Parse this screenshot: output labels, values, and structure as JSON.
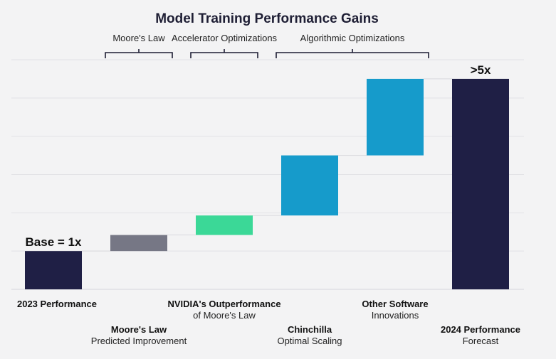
{
  "chart_data": {
    "type": "bar",
    "subtype": "waterfall",
    "title": "Model Training Performance Gains",
    "xlabel": "",
    "ylabel": "",
    "ylim": [
      0,
      6
    ],
    "grid": true,
    "categories": [
      {
        "bold": "2023 Performance",
        "normal": ""
      },
      {
        "bold": "Moore's Law",
        "normal": "Predicted Improvement"
      },
      {
        "bold": "NVIDIA's Outperformance",
        "normal": "of Moore's Law"
      },
      {
        "bold": "Chinchilla",
        "normal": "Optimal Scaling"
      },
      {
        "bold": "Other Software",
        "normal": "Innovations"
      },
      {
        "bold": "2024 Performance",
        "normal": "Forecast"
      }
    ],
    "bars": [
      {
        "start": 0,
        "end": 1.0,
        "color": "#1f1f45",
        "kind": "total"
      },
      {
        "start": 1.0,
        "end": 1.42,
        "color": "#767785",
        "kind": "step"
      },
      {
        "start": 1.42,
        "end": 1.93,
        "color": "#3bd897",
        "kind": "step"
      },
      {
        "start": 1.93,
        "end": 3.5,
        "color": "#169bcb",
        "kind": "step"
      },
      {
        "start": 3.5,
        "end": 5.5,
        "color": "#169bcb",
        "kind": "step"
      },
      {
        "start": 0,
        "end": 5.5,
        "color": "#1f1f45",
        "kind": "total"
      }
    ],
    "value_labels": [
      {
        "bar": 0,
        "text": "Base = 1x"
      },
      {
        "bar": 5,
        "text": ">5x"
      }
    ],
    "groups": [
      {
        "label": "Moore's Law",
        "from": 1,
        "to": 1
      },
      {
        "label": "Accelerator Optimizations",
        "from": 2,
        "to": 2
      },
      {
        "label": "Algorithmic Optimizations",
        "from": 3,
        "to": 4
      }
    ]
  }
}
